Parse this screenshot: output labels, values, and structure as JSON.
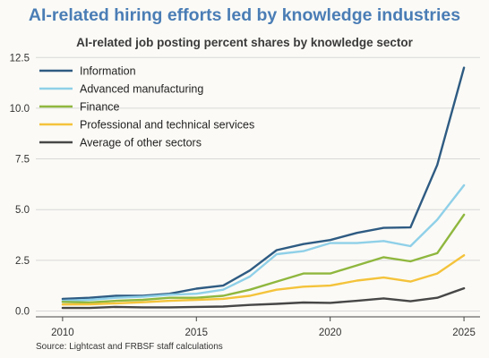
{
  "header": {
    "title": "AI-related hiring efforts led by knowledge industries",
    "subtitle": "AI-related job posting percent shares by knowledge sector"
  },
  "footer": {
    "source": "Source: Lightcast and FRBSF staff calculations"
  },
  "chart_data": {
    "type": "line",
    "title": "AI-related hiring efforts led by knowledge industries",
    "subtitle": "AI-related job posting percent shares by knowledge sector",
    "xlabel": "",
    "ylabel": "",
    "xlim": [
      2009,
      2025.6
    ],
    "ylim": [
      -0.2,
      12.6
    ],
    "x_ticks": [
      2010,
      2015,
      2020,
      2025
    ],
    "y_ticks": [
      0,
      2.5,
      5,
      7.5,
      10,
      12.5
    ],
    "y_tick_labels": [
      "0.0",
      "2.5",
      "5.0",
      "7.5",
      "10.0",
      "12.5"
    ],
    "grid": "horizontal",
    "legend_position": "top-left",
    "x": [
      2010,
      2011,
      2012,
      2013,
      2014,
      2015,
      2016,
      2017,
      2018,
      2019,
      2020,
      2021,
      2022,
      2023,
      2024,
      2025
    ],
    "series": [
      {
        "name": "Information",
        "color": "#2e5b82",
        "values": [
          0.6,
          0.65,
          0.75,
          0.75,
          0.85,
          1.1,
          1.25,
          2.0,
          3.0,
          3.3,
          3.5,
          3.85,
          4.1,
          4.12,
          7.2,
          12.0
        ]
      },
      {
        "name": "Advanced manufacturing",
        "color": "#8fd0e8",
        "values": [
          0.5,
          0.55,
          0.65,
          0.7,
          0.8,
          0.85,
          1.05,
          1.7,
          2.8,
          2.95,
          3.35,
          3.35,
          3.45,
          3.2,
          4.5,
          6.2
        ]
      },
      {
        "name": "Finance",
        "color": "#8fb73e",
        "values": [
          0.45,
          0.42,
          0.5,
          0.55,
          0.65,
          0.65,
          0.75,
          1.05,
          1.45,
          1.85,
          1.85,
          2.25,
          2.65,
          2.45,
          2.85,
          4.75
        ]
      },
      {
        "name": "Professional and technical services",
        "color": "#f4c33b",
        "values": [
          0.32,
          0.33,
          0.38,
          0.43,
          0.5,
          0.55,
          0.6,
          0.75,
          1.05,
          1.2,
          1.25,
          1.5,
          1.65,
          1.45,
          1.85,
          2.75
        ]
      },
      {
        "name": "Average of other sectors",
        "color": "#474747",
        "values": [
          0.15,
          0.15,
          0.2,
          0.18,
          0.18,
          0.2,
          0.22,
          0.3,
          0.35,
          0.42,
          0.4,
          0.5,
          0.62,
          0.48,
          0.65,
          1.12
        ]
      }
    ]
  }
}
